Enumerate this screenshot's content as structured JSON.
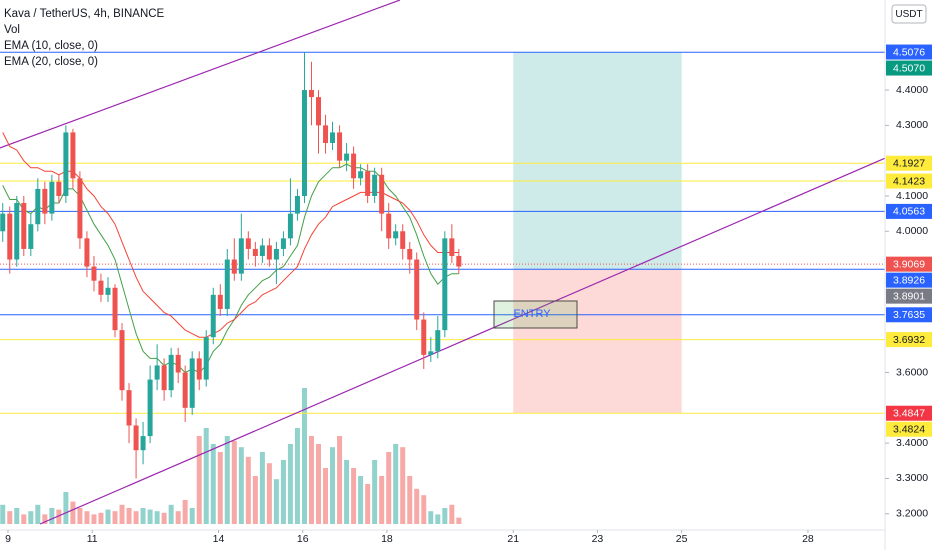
{
  "chart_data": {
    "type": "candlestick",
    "title": "Kava / TetherUS, 4h, BINANCE",
    "currency": "USDT",
    "up_color": "#26a69a",
    "down_color": "#ef5350",
    "grid": false,
    "xlim": [
      8.81,
      29.83
    ],
    "ylim": [
      3.154,
      4.655
    ],
    "xticks": [
      9,
      11,
      14,
      16,
      18,
      21,
      23,
      25,
      28
    ],
    "yticks": [
      {
        "value": 4.4,
        "label": "4.4000"
      },
      {
        "value": 4.3,
        "label": "4.3000"
      },
      {
        "value": 4.1,
        "label": "4.1000"
      },
      {
        "value": 4.0,
        "label": "4.0000"
      },
      {
        "value": 3.6,
        "label": "3.6000"
      },
      {
        "value": 3.4,
        "label": "3.4000"
      },
      {
        "value": 3.3,
        "label": "3.3000"
      },
      {
        "value": 3.2,
        "label": "3.2000"
      }
    ],
    "x": [
      8.875,
      9.042,
      9.208,
      9.375,
      9.542,
      9.708,
      9.875,
      10.042,
      10.208,
      10.375,
      10.542,
      10.708,
      10.875,
      11.042,
      11.208,
      11.375,
      11.542,
      11.708,
      11.875,
      12.042,
      12.208,
      12.375,
      12.542,
      12.708,
      12.875,
      13.042,
      13.208,
      13.375,
      13.542,
      13.708,
      13.875,
      14.042,
      14.208,
      14.375,
      14.542,
      14.708,
      14.875,
      15.042,
      15.208,
      15.375,
      15.542,
      15.708,
      15.875,
      16.042,
      16.208,
      16.375,
      16.542,
      16.708,
      16.875,
      17.042,
      17.208,
      17.375,
      17.542,
      17.708,
      17.875,
      18.042,
      18.208,
      18.375,
      18.542,
      18.708,
      18.875,
      19.042,
      19.208,
      19.375,
      19.542,
      19.708
    ],
    "open": [
      4,
      4.05,
      3.92,
      4.08,
      3.95,
      4.02,
      4.12,
      4.05,
      4.14,
      4.1,
      4.28,
      4.15,
      3.98,
      3.9,
      3.86,
      3.82,
      3.84,
      3.72,
      3.55,
      3.45,
      3.38,
      3.42,
      3.58,
      3.62,
      3.55,
      3.65,
      3.6,
      3.5,
      3.64,
      3.58,
      3.7,
      3.82,
      3.78,
      3.92,
      3.88,
      3.98,
      3.95,
      3.93,
      3.96,
      3.92,
      3.95,
      3.98,
      4.05,
      4.1,
      4.4,
      4.38,
      4.3,
      4.25,
      4.28,
      4.2,
      4.22,
      4.15,
      4.17,
      4.1,
      4.16,
      4.05,
      3.98,
      4,
      3.95,
      3.92,
      3.75,
      3.65,
      3.66,
      3.72,
      3.98,
      3.93
    ],
    "high": [
      4.08,
      4.07,
      4.1,
      4.1,
      4.05,
      4.15,
      4.14,
      4.16,
      4.16,
      4.3,
      4.29,
      4.17,
      4,
      3.93,
      3.88,
      3.87,
      3.85,
      3.74,
      3.57,
      3.47,
      3.46,
      3.62,
      3.68,
      3.64,
      3.67,
      3.67,
      3.62,
      3.66,
      3.66,
      3.72,
      3.84,
      3.85,
      3.95,
      3.98,
      4.05,
      4,
      3.97,
      3.98,
      3.98,
      3.97,
      4,
      4.15,
      4.12,
      4.507,
      4.48,
      4.4,
      4.33,
      4.31,
      4.3,
      4.25,
      4.24,
      4.19,
      4.19,
      4.18,
      4.18,
      4.08,
      4.02,
      4.02,
      3.97,
      3.94,
      3.77,
      3.7,
      3.76,
      4,
      4.02,
      3.95
    ],
    "low": [
      3.97,
      3.88,
      3.9,
      3.93,
      3.93,
      4,
      4.02,
      4.03,
      4.08,
      4.08,
      4.12,
      3.95,
      3.87,
      3.83,
      3.8,
      3.8,
      3.7,
      3.52,
      3.4,
      3.3,
      3.34,
      3.4,
      3.55,
      3.52,
      3.53,
      3.57,
      3.46,
      3.48,
      3.55,
      3.56,
      3.68,
      3.76,
      3.76,
      3.86,
      3.86,
      3.92,
      3.9,
      3.91,
      3.9,
      3.85,
      3.93,
      3.96,
      4.03,
      4.08,
      4.3,
      4.22,
      4.22,
      4.23,
      4.18,
      4.17,
      4.12,
      4.13,
      4.08,
      4.08,
      4,
      3.95,
      3.96,
      3.92,
      3.88,
      3.72,
      3.61,
      3.63,
      3.64,
      3.7,
      3.91,
      3.88
    ],
    "close": [
      4.05,
      3.92,
      4.08,
      3.95,
      4.02,
      4.12,
      4.05,
      4.14,
      4.1,
      4.28,
      4.15,
      3.98,
      3.9,
      3.86,
      3.82,
      3.84,
      3.72,
      3.55,
      3.45,
      3.38,
      3.42,
      3.58,
      3.62,
      3.55,
      3.65,
      3.6,
      3.5,
      3.64,
      3.58,
      3.7,
      3.82,
      3.78,
      3.92,
      3.88,
      3.98,
      3.95,
      3.93,
      3.96,
      3.92,
      3.95,
      3.98,
      4.05,
      4.1,
      4.4,
      4.38,
      4.3,
      4.25,
      4.28,
      4.2,
      4.22,
      4.15,
      4.17,
      4.1,
      4.16,
      4.05,
      3.98,
      4,
      3.95,
      3.92,
      3.75,
      3.65,
      3.66,
      3.72,
      3.98,
      3.93,
      3.9
    ],
    "volume": {
      "name": "Vol",
      "vlim": [
        0,
        100
      ],
      "values": [
        12,
        8,
        10,
        6,
        8,
        12,
        6,
        10,
        9,
        20,
        14,
        10,
        8,
        6,
        7,
        9,
        8,
        12,
        10,
        8,
        10,
        9,
        8,
        7,
        12,
        8,
        15,
        10,
        55,
        60,
        50,
        45,
        55,
        52,
        48,
        42,
        30,
        45,
        38,
        28,
        40,
        50,
        60,
        85,
        55,
        50,
        35,
        48,
        55,
        40,
        35,
        30,
        25,
        40,
        30,
        45,
        50,
        48,
        30,
        22,
        18,
        8,
        6,
        10,
        12,
        4
      ]
    },
    "series": [
      {
        "name": "EMA (10, close, 0)",
        "color": "#43a047",
        "values": [
          4.13,
          4.09,
          4.09,
          4.06,
          4.05,
          4.07,
          4.06,
          4.08,
          4.08,
          4.12,
          4.12,
          4.1,
          4.06,
          4.02,
          3.99,
          3.96,
          3.92,
          3.85,
          3.78,
          3.71,
          3.66,
          3.64,
          3.64,
          3.62,
          3.63,
          3.62,
          3.6,
          3.61,
          3.6,
          3.62,
          3.66,
          3.68,
          3.72,
          3.75,
          3.79,
          3.82,
          3.84,
          3.86,
          3.87,
          3.89,
          3.9,
          3.93,
          3.96,
          4.04,
          4.1,
          4.14,
          4.16,
          4.18,
          4.18,
          4.19,
          4.18,
          4.18,
          4.17,
          4.17,
          4.15,
          4.12,
          4.1,
          4.07,
          4.04,
          3.99,
          3.93,
          3.88,
          3.85,
          3.87,
          3.88,
          3.88
        ]
      },
      {
        "name": "EMA (20, close, 0)",
        "color": "#f44336",
        "values": [
          4.28,
          4.24,
          4.23,
          4.2,
          4.18,
          4.18,
          4.17,
          4.17,
          4.16,
          4.17,
          4.17,
          4.15,
          4.12,
          4.1,
          4.07,
          4.05,
          4.02,
          3.97,
          3.92,
          3.87,
          3.83,
          3.81,
          3.79,
          3.77,
          3.76,
          3.74,
          3.72,
          3.71,
          3.7,
          3.7,
          3.71,
          3.72,
          3.74,
          3.75,
          3.77,
          3.79,
          3.8,
          3.82,
          3.83,
          3.84,
          3.86,
          3.88,
          3.9,
          3.95,
          3.99,
          4.02,
          4.04,
          4.07,
          4.08,
          4.09,
          4.1,
          4.11,
          4.11,
          4.11,
          4.11,
          4.1,
          4.09,
          4.08,
          4.06,
          4.03,
          3.99,
          3.96,
          3.94,
          3.94,
          3.94,
          3.94
        ]
      }
    ],
    "trendlines": [
      {
        "color": "#9c27b0",
        "x": [
          8.81,
          18.31
        ],
        "y": [
          4.236,
          4.655
        ]
      },
      {
        "color": "#9c27b0",
        "x": [
          9.76,
          29.83
        ],
        "y": [
          3.171,
          4.207
        ]
      }
    ],
    "position": {
      "x": [
        21,
        25
      ],
      "target": 4.507,
      "entry": 3.8926,
      "stop": 3.4847,
      "profit_color": "rgba(38,166,154,0.22)",
      "loss_color": "rgba(244,67,54,0.2)"
    },
    "annotation": "ENTRY",
    "price_labels": [
      {
        "value": 4.5076,
        "label": "4.5076",
        "color": "#2962ff",
        "text_color": "#ffffff"
      },
      {
        "value": 4.507,
        "label": "4.5070",
        "color": "#089981",
        "text_color": "#ffffff",
        "line": "#2962ff"
      },
      {
        "value": 4.1927,
        "label": "4.1927",
        "color": "#ffeb3b",
        "text_color": "#131722",
        "line": "#ffeb3b"
      },
      {
        "value": 4.1423,
        "label": "4.1423",
        "color": "#ffeb3b",
        "text_color": "#131722",
        "line": "#ffeb3b"
      },
      {
        "value": 4.0563,
        "label": "4.0563",
        "color": "#2962ff",
        "text_color": "#ffffff",
        "line": "#2962ff"
      },
      {
        "value": 3.9069,
        "label": "3.9069",
        "color": "#ef5350",
        "text_color": "#ffffff",
        "line": "#ef5350",
        "dash": true
      },
      {
        "value": 3.8926,
        "label": "3.8926",
        "color": "#2962ff",
        "text_color": "#ffffff",
        "line": "#2962ff"
      },
      {
        "value": 3.8901,
        "label": "3.8901",
        "color": "#787b86",
        "text_color": "#ffffff"
      },
      {
        "value": 3.7635,
        "label": "3.7635",
        "color": "#2962ff",
        "text_color": "#ffffff",
        "line": "#2962ff"
      },
      {
        "value": 3.6932,
        "label": "3.6932",
        "color": "#ffeb3b",
        "text_color": "#131722",
        "line": "#ffeb3b"
      },
      {
        "value": 3.4847,
        "label": "3.4847",
        "color": "#f23645",
        "text_color": "#ffffff",
        "line": "#ffeb3b"
      },
      {
        "value": 3.4824,
        "label": "3.4824",
        "color": "#ffeb3b",
        "text_color": "#131722"
      }
    ]
  }
}
